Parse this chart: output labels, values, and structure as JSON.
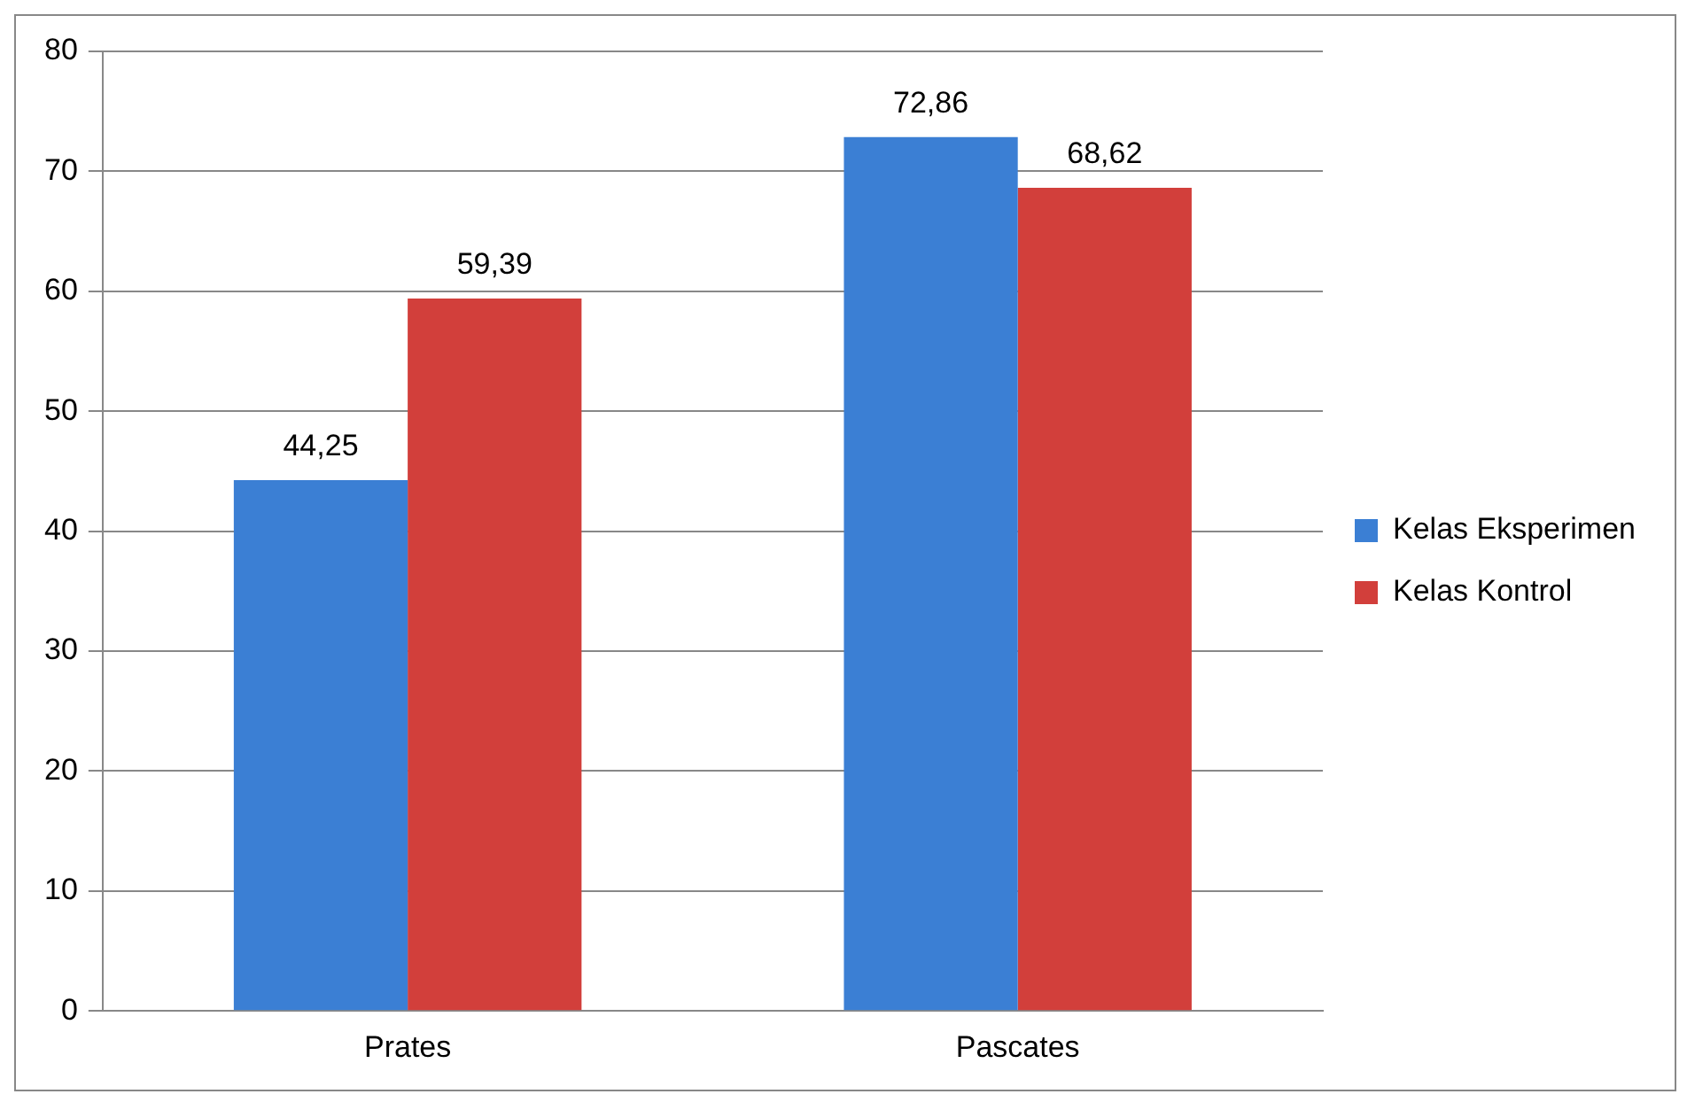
{
  "chart_data": {
    "type": "bar",
    "categories": [
      "Prates",
      "Pascates"
    ],
    "series": [
      {
        "name": "Kelas Eksperimen",
        "color": "#3b7fd4",
        "values": [
          44.25,
          72.86
        ],
        "value_labels": [
          "44,25",
          "72,86"
        ]
      },
      {
        "name": "Kelas Kontrol",
        "color": "#d23f3b",
        "values": [
          59.39,
          68.62
        ],
        "value_labels": [
          "59,39",
          "68,62"
        ]
      }
    ],
    "ylim": [
      0,
      80
    ],
    "yticks": [
      0,
      10,
      20,
      30,
      40,
      50,
      60,
      70,
      80
    ],
    "grid": "y",
    "legend": "right"
  }
}
